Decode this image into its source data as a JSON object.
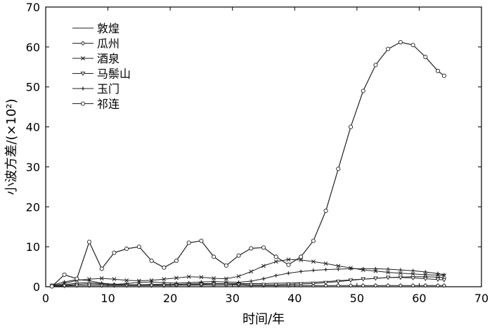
{
  "chart_data": {
    "type": "line",
    "xlabel": "时间/年",
    "ylabel": "小波方差/(×10²)",
    "xlim": [
      0,
      70
    ],
    "ylim": [
      0,
      70
    ],
    "xticks": [
      "0",
      "10",
      "20",
      "30",
      "40",
      "50",
      "60",
      "70"
    ],
    "yticks": [
      "0",
      "10",
      "20",
      "30",
      "40",
      "50",
      "60",
      "70"
    ],
    "grid": false,
    "legend_position": "top-left",
    "x": [
      1,
      3,
      5,
      7,
      9,
      11,
      13,
      15,
      17,
      19,
      21,
      23,
      25,
      27,
      29,
      31,
      33,
      35,
      37,
      39,
      41,
      43,
      45,
      47,
      49,
      51,
      53,
      55,
      57,
      59,
      61,
      63,
      64
    ],
    "series": [
      {
        "name": "敦煌",
        "marker": "none",
        "values": [
          0.2,
          0.5,
          0.9,
          1.0,
          0.8,
          0.6,
          0.5,
          0.5,
          0.6,
          0.6,
          0.6,
          0.7,
          0.8,
          0.8,
          0.8,
          0.8,
          0.8,
          0.8,
          0.9,
          0.9,
          1.0,
          1.1,
          1.3,
          1.5,
          1.7,
          1.9,
          2.1,
          2.3,
          2.4,
          2.5,
          2.5,
          2.4,
          2.3
        ]
      },
      {
        "name": "瓜州",
        "marker": "diamond",
        "values": [
          0.1,
          0.3,
          0.6,
          0.7,
          0.6,
          0.5,
          0.5,
          0.5,
          0.5,
          0.4,
          0.4,
          0.4,
          0.4,
          0.4,
          0.4,
          0.4,
          0.3,
          0.3,
          0.3,
          0.3,
          0.3,
          0.3,
          0.3,
          0.3,
          0.3,
          0.3,
          0.3,
          0.3,
          0.3,
          0.3,
          0.3,
          0.3,
          0.3
        ]
      },
      {
        "name": "酒泉",
        "marker": "x",
        "values": [
          0.3,
          0.8,
          1.6,
          1.9,
          2.1,
          1.9,
          1.6,
          1.5,
          1.6,
          1.9,
          2.2,
          2.5,
          2.4,
          2.1,
          2.0,
          2.6,
          3.8,
          5.2,
          6.3,
          6.8,
          6.7,
          6.3,
          5.8,
          5.2,
          4.7,
          4.2,
          3.9,
          3.6,
          3.4,
          3.2,
          3.0,
          2.9,
          2.8
        ]
      },
      {
        "name": "马鬃山",
        "marker": "triangle-down",
        "values": [
          0.1,
          0.2,
          0.3,
          0.3,
          0.3,
          0.3,
          0.3,
          0.3,
          0.3,
          0.3,
          0.4,
          0.5,
          0.6,
          0.7,
          0.7,
          0.6,
          0.5,
          0.5,
          0.5,
          0.6,
          0.7,
          0.8,
          1.0,
          1.3,
          1.6,
          1.9,
          2.1,
          2.3,
          2.3,
          2.2,
          2.0,
          1.8,
          1.7
        ]
      },
      {
        "name": "玉门",
        "marker": "plus",
        "values": [
          0.4,
          1.2,
          1.8,
          1.5,
          0.9,
          0.6,
          0.8,
          1.1,
          1.2,
          1.0,
          0.9,
          1.0,
          1.2,
          1.3,
          1.2,
          1.1,
          1.4,
          2.0,
          2.8,
          3.4,
          3.8,
          4.1,
          4.3,
          4.4,
          4.5,
          4.5,
          4.5,
          4.4,
          4.2,
          4.0,
          3.7,
          3.3,
          3.0
        ]
      },
      {
        "name": "祁连",
        "marker": "circle",
        "values": [
          0.1,
          3.0,
          2.0,
          11.2,
          4.5,
          8.5,
          9.5,
          10.0,
          6.5,
          4.8,
          6.5,
          11.0,
          11.5,
          7.5,
          5.3,
          7.8,
          9.6,
          9.8,
          7.5,
          5.5,
          7.5,
          11.5,
          19.0,
          29.5,
          40.0,
          49.0,
          55.5,
          59.5,
          61.2,
          60.5,
          57.5,
          54.0,
          52.8
        ]
      }
    ]
  }
}
